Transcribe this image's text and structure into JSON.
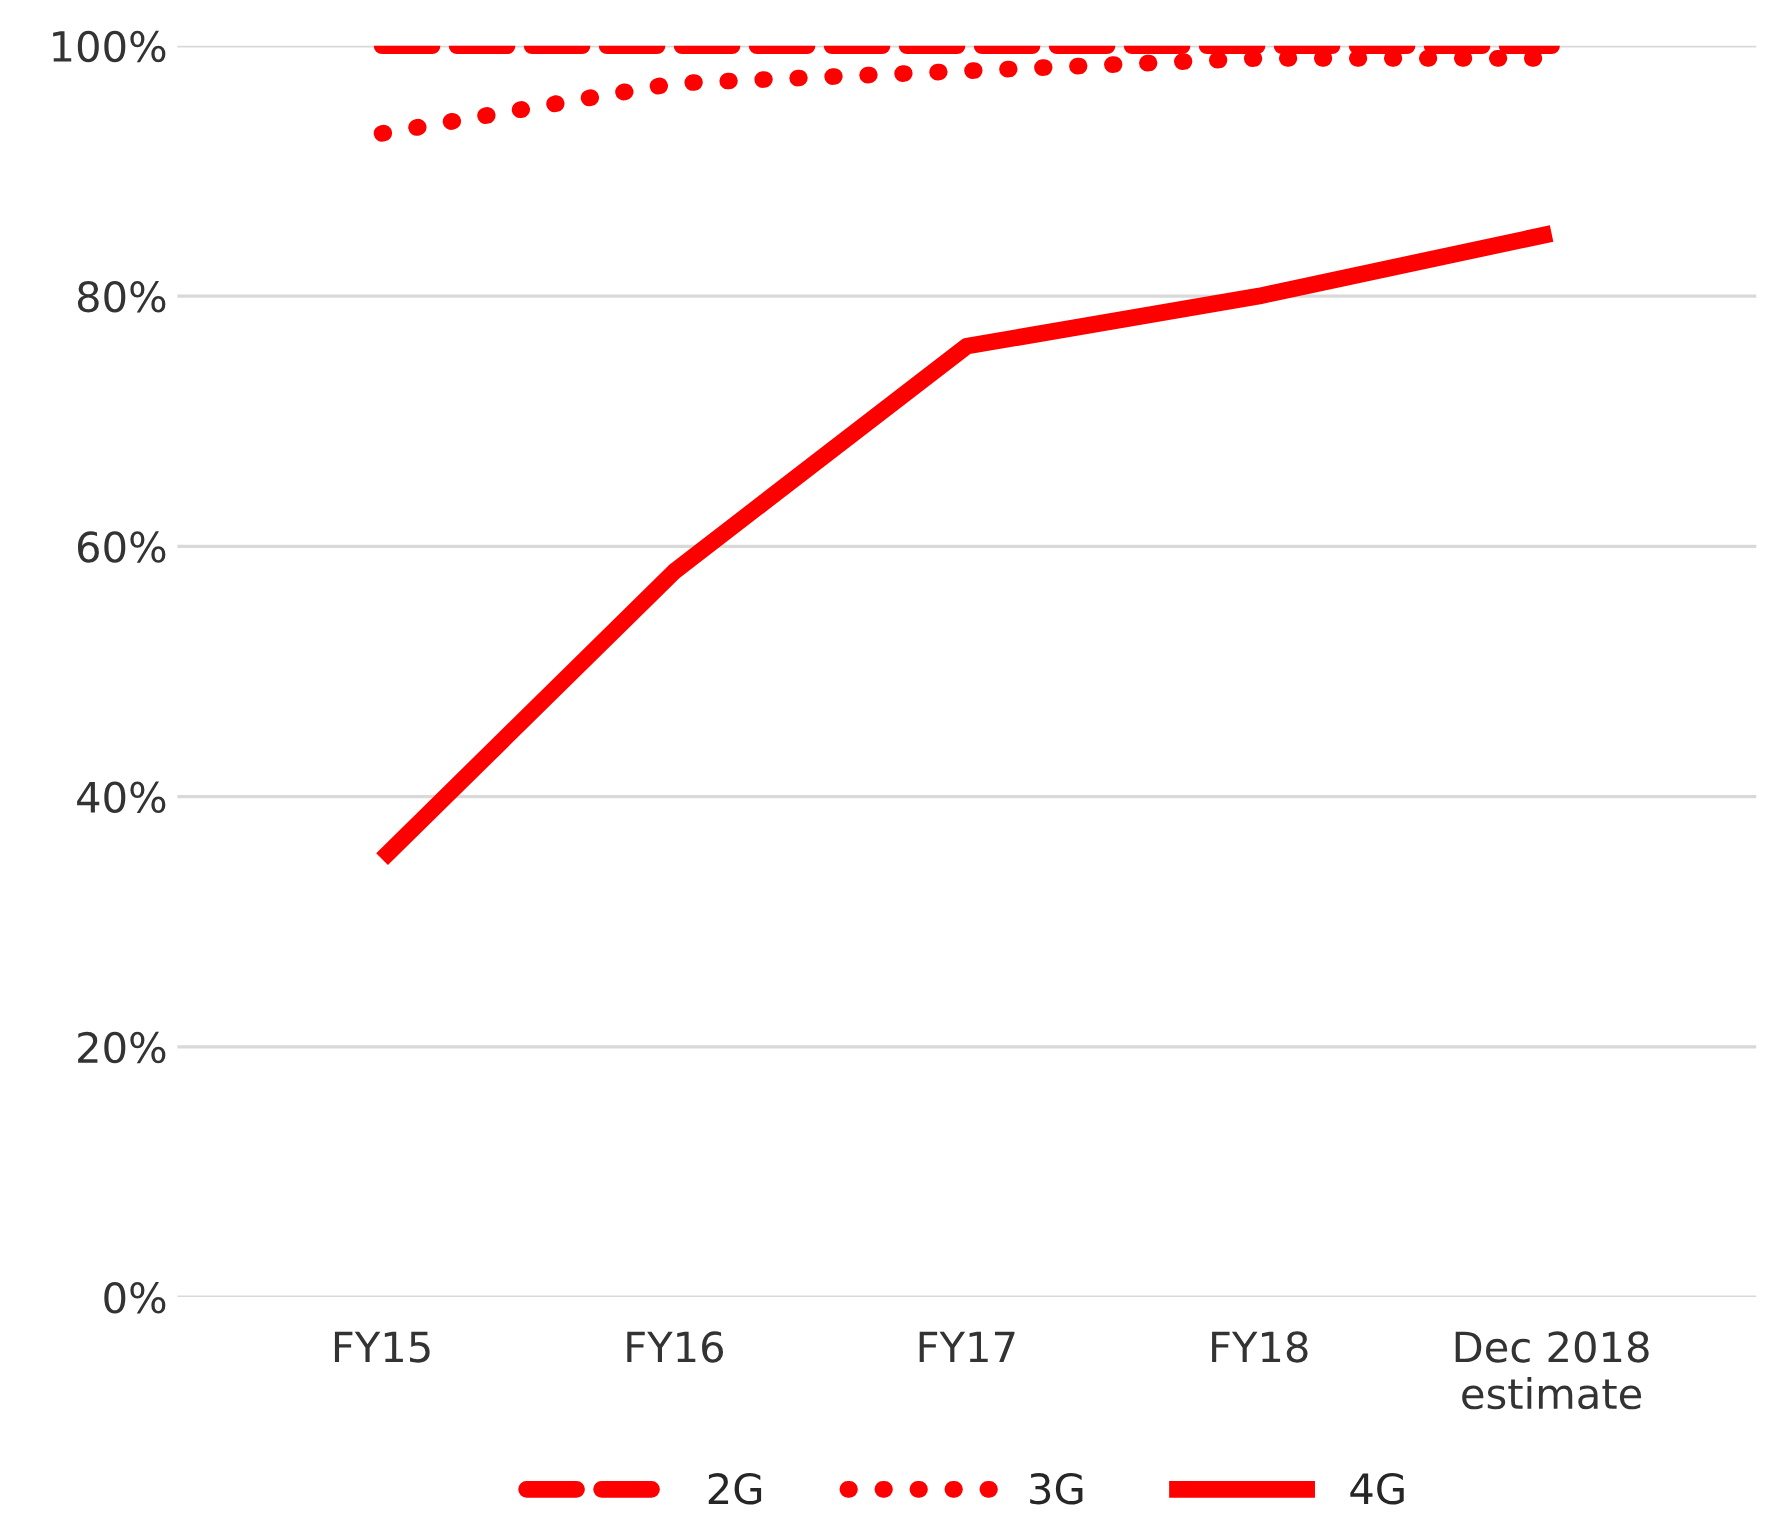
{
  "chart_data": {
    "type": "line",
    "categories": [
      "FY15",
      "FY16",
      "FY17",
      "FY18",
      "Dec 2018\nestimate"
    ],
    "series": [
      {
        "name": "2G",
        "color": "#ff0000",
        "line_style": "dashed",
        "values": [
          100,
          100,
          100,
          100,
          100
        ]
      },
      {
        "name": "3G",
        "color": "#ff0000",
        "line_style": "dotted",
        "values": [
          93,
          97,
          98,
          99,
          99
        ]
      },
      {
        "name": "4G",
        "color": "#ff0000",
        "line_style": "solid",
        "values": [
          35,
          58,
          76,
          80,
          85
        ]
      }
    ],
    "ylim": [
      0,
      100
    ],
    "yticks": [
      {
        "value": 0,
        "label": "0%"
      },
      {
        "value": 20,
        "label": "20%"
      },
      {
        "value": 40,
        "label": "40%"
      },
      {
        "value": 60,
        "label": "60%"
      },
      {
        "value": 80,
        "label": "80%"
      },
      {
        "value": 100,
        "label": "100%"
      }
    ],
    "grid": "y",
    "legend": "bottom",
    "marker": "none"
  }
}
